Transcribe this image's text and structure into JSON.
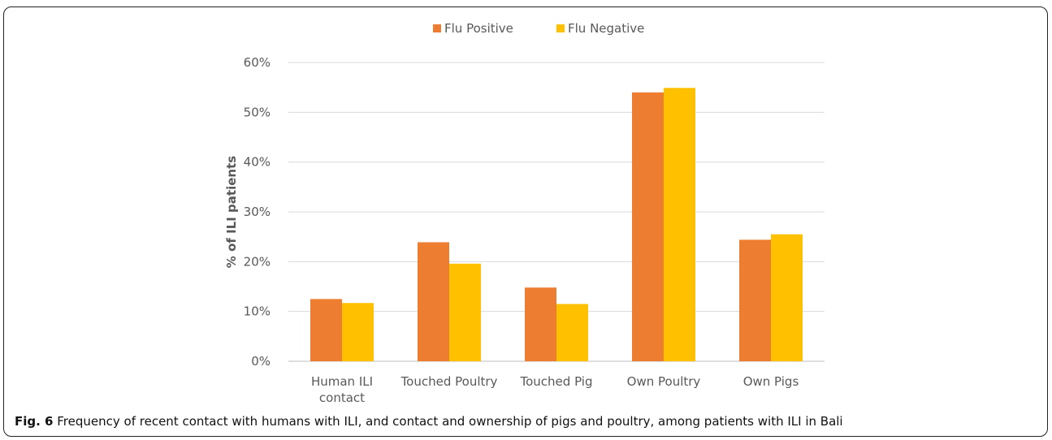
{
  "caption": {
    "label": "Fig. 6",
    "text": "Frequency of recent contact with humans with ILI, and contact and ownership of pigs and poultry, among patients with ILI in Bali"
  },
  "colors": {
    "flu_positive": "#ED7D31",
    "flu_negative": "#FFC000",
    "grid": "#D9D9D9",
    "text": "#595959"
  },
  "chart_data": {
    "type": "bar",
    "categories": [
      "Human ILI contact",
      "Touched Poultry",
      "Touched Pig",
      "Own Poultry",
      "Own Pigs"
    ],
    "category_lines": [
      [
        "Human ILI",
        "contact"
      ],
      [
        "Touched Poultry"
      ],
      [
        "Touched Pig"
      ],
      [
        "Own Poultry"
      ],
      [
        "Own Pigs"
      ]
    ],
    "series": [
      {
        "name": "Flu Positive",
        "values": [
          12.5,
          23.9,
          14.8,
          54.0,
          24.4
        ]
      },
      {
        "name": "Flu Negative",
        "values": [
          11.7,
          19.6,
          11.5,
          54.9,
          25.5
        ]
      }
    ],
    "ylabel": "% of ILI patients",
    "ylim": [
      0,
      60
    ],
    "yticks": [
      "0%",
      "10%",
      "20%",
      "30%",
      "40%",
      "50%",
      "60%"
    ],
    "legend_position": "top-center",
    "grid": true
  }
}
